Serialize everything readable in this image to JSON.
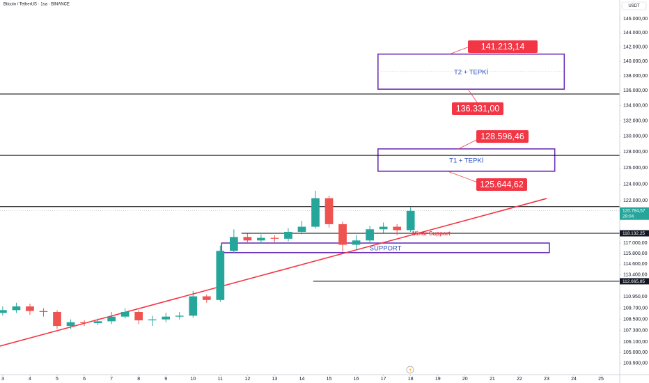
{
  "chart_data": {
    "type": "candlestick",
    "title": "Bitcoin / TetherUS · 1sa · BINANCE",
    "currency": "USDT",
    "log_scale": true,
    "xlim": [
      2.9,
      25.69
    ],
    "xticks": [
      3,
      4,
      5,
      6,
      7,
      8,
      9,
      10,
      11,
      12,
      13,
      14,
      15,
      16,
      17,
      18,
      19,
      20,
      21,
      22,
      23,
      24,
      25
    ],
    "ylim": [
      102740,
      148740
    ],
    "yticks": [
      {
        "value": 146000,
        "label": "146.000,00"
      },
      {
        "value": 144000,
        "label": "144.000,00"
      },
      {
        "value": 142000,
        "label": "142.000,00"
      },
      {
        "value": 140000,
        "label": "140.000,00"
      },
      {
        "value": 138000,
        "label": "138.000,00"
      },
      {
        "value": 136000,
        "label": "136.000,00"
      },
      {
        "value": 134000,
        "label": "134.000,00"
      },
      {
        "value": 132000,
        "label": "132.000,00"
      },
      {
        "value": 130000,
        "label": "130.000,00"
      },
      {
        "value": 128000,
        "label": "128.000,00"
      },
      {
        "value": 126000,
        "label": "126.000,00"
      },
      {
        "value": 124000,
        "label": "124.000,00"
      },
      {
        "value": 122000,
        "label": "122.000,00"
      },
      {
        "value": 117000,
        "label": "117.000,00"
      },
      {
        "value": 115800,
        "label": "115.800,00"
      },
      {
        "value": 114600,
        "label": "114.600,00"
      },
      {
        "value": 113400,
        "label": "113.400,00"
      },
      {
        "value": 110950,
        "label": "110.950,00"
      },
      {
        "value": 109700,
        "label": "109.700,00"
      },
      {
        "value": 108500,
        "label": "108.500,00"
      },
      {
        "value": 107300,
        "label": "107.300,00"
      },
      {
        "value": 106100,
        "label": "106.100,00"
      },
      {
        "value": 105000,
        "label": "105.000,00"
      },
      {
        "value": 103900,
        "label": "103.900,00"
      }
    ],
    "x": [
      3,
      3.5,
      4,
      4.5,
      5,
      5.5,
      6,
      6.5,
      7,
      7.5,
      8,
      8.5,
      9,
      9.5,
      10,
      10.5,
      11,
      11.5,
      12,
      12.5,
      13,
      13.5,
      14,
      14.5,
      15,
      15.5,
      16,
      16.5,
      17,
      17.5,
      18
    ],
    "open": [
      109200,
      109500,
      109900,
      109400,
      109300,
      107800,
      108200,
      108100,
      108300,
      108800,
      109300,
      108400,
      108500,
      108800,
      108900,
      111000,
      110600,
      116100,
      117700,
      117300,
      117600,
      117500,
      118300,
      118900,
      122300,
      119200,
      116800,
      117300,
      118600,
      118900,
      118500
    ],
    "high": [
      109900,
      110300,
      110200,
      109700,
      109500,
      108500,
      108400,
      108600,
      109300,
      109700,
      109500,
      108900,
      109200,
      109300,
      111600,
      111200,
      116700,
      118600,
      118100,
      118000,
      117900,
      118700,
      119600,
      123200,
      122600,
      119500,
      117900,
      119000,
      119400,
      119200,
      121200
    ],
    "low": [
      108900,
      109200,
      109000,
      108800,
      107500,
      107500,
      107800,
      107900,
      108000,
      108600,
      108000,
      107800,
      108200,
      108500,
      108700,
      110300,
      110400,
      115900,
      116900,
      117000,
      117100,
      117200,
      118000,
      118700,
      118800,
      116000,
      116300,
      117000,
      118200,
      117900,
      118300
    ],
    "close": [
      109500,
      109900,
      109400,
      109300,
      107800,
      108200,
      108100,
      108300,
      108800,
      109300,
      108400,
      108500,
      108800,
      108900,
      111000,
      110600,
      116100,
      117700,
      117300,
      117600,
      117500,
      118300,
      118900,
      122300,
      119200,
      116800,
      117300,
      118600,
      118900,
      118500,
      120780
    ],
    "up_color": "#26a69a",
    "down_color": "#ef5350",
    "trendline": {
      "x": [
        2.9,
        23
      ],
      "values": [
        105680,
        122260
      ],
      "color": "#f23645"
    },
    "zones": [
      {
        "label": "T2 + TEPKİ",
        "x": [
          16.8,
          23.65
        ],
        "values": [
          136200,
          141000
        ]
      },
      {
        "label": "T1 + TEPKİ",
        "x": [
          16.8,
          23.3
        ],
        "values": [
          125600,
          128400
        ]
      },
      {
        "label": "SUPPORT",
        "x": [
          11.05,
          23.1
        ],
        "values": [
          115900,
          117000
        ]
      }
    ],
    "hlines": [
      {
        "value": 135550,
        "x0": 2.9
      },
      {
        "value": 127580,
        "x0": 2.9
      },
      {
        "value": 121280,
        "x0": 2.9
      },
      {
        "value": 118132.25,
        "label": "118.132,25",
        "x0": 11.78
      },
      {
        "value": 112665.85,
        "label": "112.665,85",
        "x0": 14.42
      }
    ],
    "last_price": {
      "value": 120784.57,
      "label": "120.784,57",
      "countdown": "29:04"
    },
    "annotations": [
      "141.213,14",
      "136.331,00",
      "128.596,46",
      "125.644,62",
      "Minor Support"
    ]
  }
}
